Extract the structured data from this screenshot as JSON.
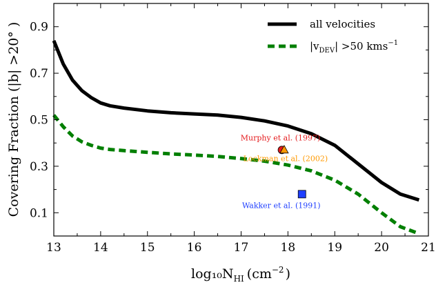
{
  "chart_data": {
    "type": "line",
    "xlabel": "log₁₀N",
    "xlabel_sub": "HI",
    "xlabel_unit": "(cm",
    "xlabel_unit_sup": "−2",
    "xlabel_unit_end": ")",
    "ylabel": "Covering Fraction (|b| >20° )",
    "xlim": [
      13,
      21
    ],
    "ylim": [
      0.0,
      1.0
    ],
    "xticks": [
      "13",
      "14",
      "15",
      "16",
      "17",
      "18",
      "19",
      "20",
      "21"
    ],
    "yticks": [
      "0.1",
      "0.3",
      "0.5",
      "0.7",
      "0.9"
    ],
    "ytick_values": [
      0.1,
      0.3,
      0.5,
      0.7,
      0.9
    ],
    "grid": false,
    "legend_position": "top-right",
    "series": [
      {
        "name": "all velocities",
        "style": "solid",
        "color": "#000000",
        "x": [
          13.0,
          13.2,
          13.4,
          13.6,
          13.8,
          14.0,
          14.2,
          14.5,
          15.0,
          15.5,
          16.0,
          16.5,
          17.0,
          17.5,
          18.0,
          18.5,
          19.0,
          19.5,
          20.0,
          20.4,
          20.8
        ],
        "y": [
          0.84,
          0.74,
          0.67,
          0.625,
          0.595,
          0.572,
          0.56,
          0.55,
          0.538,
          0.53,
          0.525,
          0.52,
          0.51,
          0.495,
          0.473,
          0.44,
          0.39,
          0.31,
          0.23,
          0.18,
          0.155
        ]
      },
      {
        "name": "|v",
        "name_sub": "DEV",
        "name_rest": "| >50 kms",
        "name_sup": "−1",
        "style": "dashed",
        "color": "#007f00",
        "x": [
          13.0,
          13.2,
          13.4,
          13.6,
          13.8,
          14.0,
          14.2,
          14.5,
          15.0,
          15.5,
          16.0,
          16.5,
          17.0,
          17.5,
          18.0,
          18.5,
          19.0,
          19.5,
          20.0,
          20.4,
          20.8
        ],
        "y": [
          0.52,
          0.47,
          0.43,
          0.405,
          0.39,
          0.378,
          0.372,
          0.367,
          0.36,
          0.353,
          0.348,
          0.342,
          0.333,
          0.322,
          0.305,
          0.28,
          0.24,
          0.18,
          0.1,
          0.04,
          0.01
        ]
      }
    ],
    "points": [
      {
        "name": "Murphy et al. (1997)",
        "x": 17.87,
        "y": 0.37,
        "marker": "circle",
        "color": "#e41a1c"
      },
      {
        "name": "Lockman et al. (2002)",
        "x": 17.92,
        "y": 0.37,
        "marker": "triangle",
        "color": "#ff9900"
      },
      {
        "name": "Wakker et al. (1991)",
        "x": 18.3,
        "y": 0.18,
        "marker": "square",
        "color": "#1f3fff"
      }
    ]
  }
}
